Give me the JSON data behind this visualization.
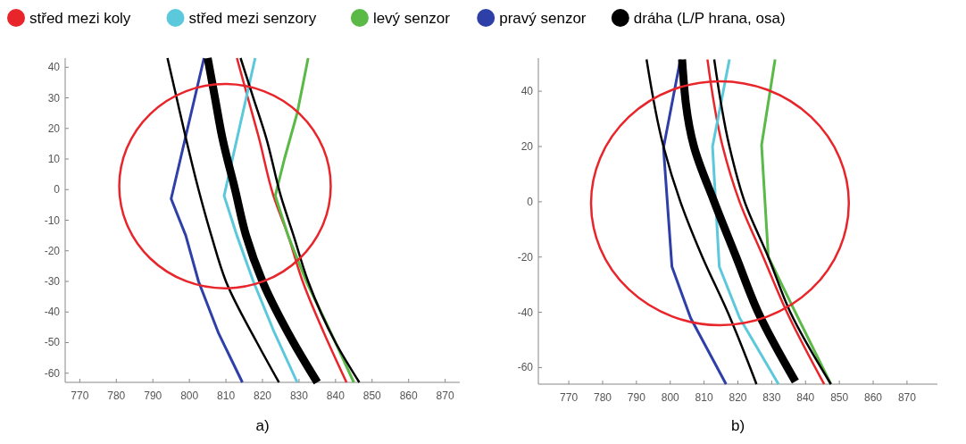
{
  "chart_data": [
    {
      "type": "line",
      "annotations": [
        "a)"
      ],
      "legend": "top",
      "marker": "none",
      "line_style": "solid",
      "grid": false,
      "xlim": [
        766,
        874
      ],
      "xticks": [
        770,
        780,
        790,
        800,
        810,
        820,
        830,
        840,
        850,
        860,
        870
      ],
      "ylim": [
        -63,
        43
      ],
      "yticks": [
        -60,
        -50,
        -40,
        -30,
        -20,
        -10,
        0,
        10,
        20,
        30,
        40
      ],
      "series": [
        {
          "name": "střed mezi koly",
          "color": "#e8252a",
          "x": [
            813,
            816,
            819,
            823,
            827,
            831,
            838,
            843
          ],
          "values": [
            43,
            30,
            17,
            -2,
            -15,
            -30,
            -50,
            -63
          ]
        },
        {
          "name": "střed mezi senzory",
          "color": "#5bc8dc",
          "x": [
            818,
            809.5,
            813,
            817.5,
            823,
            829.5
          ],
          "values": [
            43,
            -2,
            -15,
            -30,
            -46,
            -63
          ]
        },
        {
          "name": "levý senzor",
          "color": "#5ab947",
          "x": [
            832.5,
            829.5,
            826,
            823.5,
            827,
            832,
            840,
            845
          ],
          "values": [
            43,
            25,
            10,
            -2,
            -15,
            -30,
            -50,
            -63
          ]
        },
        {
          "name": "pravý senzor",
          "color": "#2e3fa8",
          "x": [
            804,
            795,
            799,
            802.5,
            808,
            814.5
          ],
          "values": [
            43,
            -3,
            -15,
            -30,
            -47,
            -63
          ]
        },
        {
          "name": "dráha (L/P hrana, osa)",
          "color": "#000000",
          "x": [
            805,
            807,
            809,
            812.5,
            815.5,
            820,
            828.5,
            835
          ],
          "values": [
            43,
            30,
            17,
            0,
            -15,
            -30,
            -50,
            -63
          ]
        },
        {
          "color": "#000000",
          "x": [
            794,
            796.5,
            799,
            802.5,
            806,
            810,
            818.5,
            824.5
          ],
          "values": [
            43,
            30,
            17,
            0,
            -15,
            -30,
            -50,
            -63
          ]
        },
        {
          "color": "#000000",
          "x": [
            814,
            817.5,
            821,
            825,
            828.5,
            832.5,
            840,
            846.5
          ],
          "values": [
            43,
            30,
            17,
            -2,
            -15,
            -30,
            -50,
            -63
          ]
        }
      ]
    },
    {
      "type": "line",
      "annotations": [
        "b)"
      ],
      "marker": "none",
      "line_style": "solid",
      "grid": false,
      "xlim": [
        761,
        879
      ],
      "xticks": [
        770,
        780,
        790,
        800,
        810,
        820,
        830,
        840,
        850,
        860,
        870
      ],
      "ylim": [
        -66,
        52
      ],
      "yticks": [
        -60,
        -40,
        -20,
        0,
        20,
        40
      ],
      "series": [
        {
          "color": "#e8252a",
          "x": [
            811,
            815.5,
            820.5,
            827.5,
            834.5,
            845.5
          ],
          "values": [
            51.5,
            20,
            0,
            -20,
            -40,
            -66
          ]
        },
        {
          "color": "#5bc8dc",
          "x": [
            817.5,
            812.5,
            814.5,
            820.5,
            832
          ],
          "values": [
            51.5,
            20,
            -23.5,
            -42,
            -66
          ]
        },
        {
          "color": "#5ab947",
          "x": [
            831,
            827,
            829,
            837,
            847.5
          ],
          "values": [
            51.5,
            20.5,
            -20,
            -40,
            -66
          ]
        },
        {
          "color": "#2e3fa8",
          "x": [
            803,
            798,
            800.5,
            806,
            816.5
          ],
          "values": [
            51.5,
            19.5,
            -23.5,
            -42,
            -66
          ]
        },
        {
          "color": "#000000",
          "x": [
            803.5,
            807,
            813,
            819.5,
            826,
            837
          ],
          "values": [
            51.5,
            20,
            0,
            -20,
            -40,
            -65
          ]
        },
        {
          "color": "#000000",
          "x": [
            793,
            798,
            803,
            809.5,
            817,
            825.5
          ],
          "values": [
            51.5,
            20,
            0,
            -20,
            -40,
            -66
          ]
        },
        {
          "color": "#000000",
          "x": [
            813,
            817.5,
            822,
            829,
            835.5,
            847.5
          ],
          "values": [
            51.5,
            20,
            0,
            -20,
            -40,
            -66
          ]
        }
      ]
    }
  ]
}
